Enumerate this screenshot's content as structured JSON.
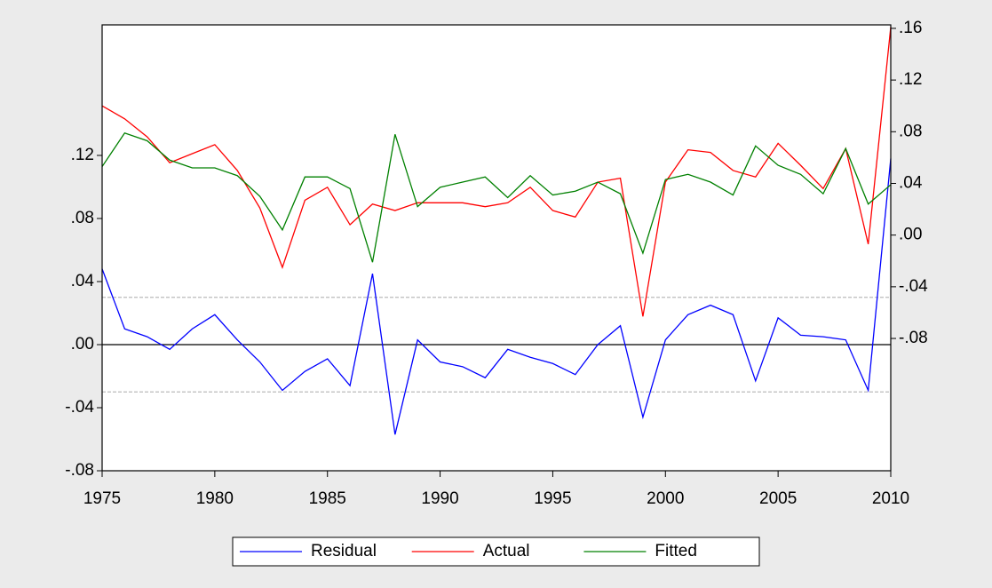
{
  "chart_data": {
    "type": "line",
    "x": [
      1975,
      1976,
      1977,
      1978,
      1979,
      1980,
      1981,
      1982,
      1983,
      1984,
      1985,
      1986,
      1987,
      1988,
      1989,
      1990,
      1991,
      1992,
      1993,
      1994,
      1995,
      1996,
      1997,
      1998,
      1999,
      2000,
      2001,
      2002,
      2003,
      2004,
      2005,
      2006,
      2007,
      2008,
      2009,
      2010
    ],
    "series": [
      {
        "name": "Residual",
        "color": "#0000ff",
        "axis": "y",
        "values": [
          0.048,
          0.01,
          0.005,
          -0.003,
          0.01,
          0.019,
          0.003,
          -0.011,
          -0.029,
          -0.017,
          -0.009,
          -0.026,
          0.045,
          -0.057,
          0.003,
          -0.011,
          -0.014,
          -0.021,
          -0.003,
          -0.008,
          -0.012,
          -0.019,
          0.0,
          0.012,
          -0.046,
          0.003,
          0.019,
          0.025,
          0.019,
          -0.023,
          0.017,
          0.006,
          0.005,
          0.003,
          -0.029,
          0.118
        ]
      },
      {
        "name": "Actual",
        "color": "#ff0000",
        "axis": "y2",
        "values": [
          0.1,
          0.09,
          0.076,
          0.056,
          0.063,
          0.07,
          0.05,
          0.021,
          -0.025,
          0.027,
          0.037,
          0.008,
          0.024,
          0.019,
          0.025,
          0.025,
          0.025,
          0.022,
          0.025,
          0.037,
          0.019,
          0.014,
          0.041,
          0.044,
          -0.063,
          0.041,
          0.066,
          0.064,
          0.05,
          0.045,
          0.071,
          0.054,
          0.036,
          0.067,
          -0.007,
          0.161
        ]
      },
      {
        "name": "Fitted",
        "color": "#008000",
        "axis": "y2",
        "values": [
          0.053,
          0.079,
          0.073,
          0.058,
          0.052,
          0.052,
          0.046,
          0.03,
          0.004,
          0.045,
          0.045,
          0.036,
          -0.021,
          0.078,
          0.022,
          0.037,
          0.041,
          0.045,
          0.029,
          0.046,
          0.031,
          0.034,
          0.041,
          0.032,
          -0.014,
          0.043,
          0.047,
          0.041,
          0.031,
          0.069,
          0.054,
          0.047,
          0.032,
          0.067,
          0.024,
          0.039
        ]
      }
    ],
    "xlim": [
      1975,
      2010
    ],
    "xticks": [
      1975,
      1980,
      1985,
      1990,
      1995,
      2000,
      2005,
      2010
    ],
    "ylim": [
      -0.08,
      0.2028
    ],
    "yticks": [
      {
        "value": -0.08,
        "label": "-.08"
      },
      {
        "value": -0.04,
        "label": "-.04"
      },
      {
        "value": 0,
        "label": ".00"
      },
      {
        "value": 0.04,
        "label": ".04"
      },
      {
        "value": 0.08,
        "label": ".08"
      },
      {
        "value": 0.12,
        "label": ".12"
      }
    ],
    "y2lim": [
      -0.1824,
      0.1627
    ],
    "y2ticks": [
      {
        "value": -0.08,
        "label": "-.08"
      },
      {
        "value": -0.04,
        "label": "-.04"
      },
      {
        "value": 0,
        "label": ".00"
      },
      {
        "value": 0.04,
        "label": ".04"
      },
      {
        "value": 0.08,
        "label": ".08"
      },
      {
        "value": 0.12,
        "label": ".12"
      },
      {
        "value": 0.16,
        "label": ".16"
      }
    ],
    "hlines": [
      {
        "value": 0,
        "dash": false
      },
      {
        "value": 0.03,
        "dash": true
      },
      {
        "value": -0.03,
        "dash": true
      }
    ]
  }
}
